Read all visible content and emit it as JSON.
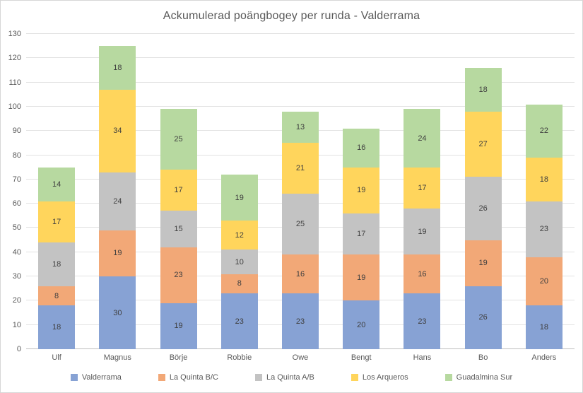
{
  "window": {
    "title": "Ackumulerad poängbogey per runda - Valderrama"
  },
  "chart_data": {
    "type": "bar",
    "stacked": true,
    "title": "Ackumulerad poängbogey per runda - Valderrama",
    "categories": [
      "Ulf",
      "Magnus",
      "Börje",
      "Robbie",
      "Owe",
      "Bengt",
      "Hans",
      "Bo",
      "Anders"
    ],
    "series": [
      {
        "name": "Valderrama",
        "color": "#87a2d4",
        "values": [
          18,
          30,
          19,
          23,
          23,
          20,
          23,
          26,
          18
        ]
      },
      {
        "name": "La Quinta B/C",
        "color": "#f2a877",
        "values": [
          8,
          19,
          23,
          8,
          16,
          19,
          16,
          19,
          20
        ]
      },
      {
        "name": "La Quinta A/B",
        "color": "#c3c3c3",
        "values": [
          18,
          24,
          15,
          10,
          25,
          17,
          19,
          26,
          23
        ]
      },
      {
        "name": "Los Arqueros",
        "color": "#ffd55c",
        "values": [
          17,
          34,
          17,
          12,
          21,
          19,
          17,
          27,
          18
        ]
      },
      {
        "name": "Guadalmina Sur",
        "color": "#b7d9a0",
        "values": [
          14,
          18,
          25,
          19,
          13,
          16,
          24,
          18,
          22
        ]
      }
    ],
    "totals": [
      75,
      125,
      99,
      72,
      98,
      91,
      99,
      116,
      101
    ],
    "xlabel": "",
    "ylabel": "",
    "ylim": [
      0,
      130
    ],
    "ytick_step": 10,
    "grid": true,
    "data_labels": true,
    "legend_position": "bottom",
    "colors": {
      "title_text": "#595959",
      "axis_text": "#595959",
      "data_label_text": "#3f3f3f",
      "gridline": "#e2e2e2",
      "axis_line": "#bfbfbf",
      "background": "#ffffff"
    }
  }
}
